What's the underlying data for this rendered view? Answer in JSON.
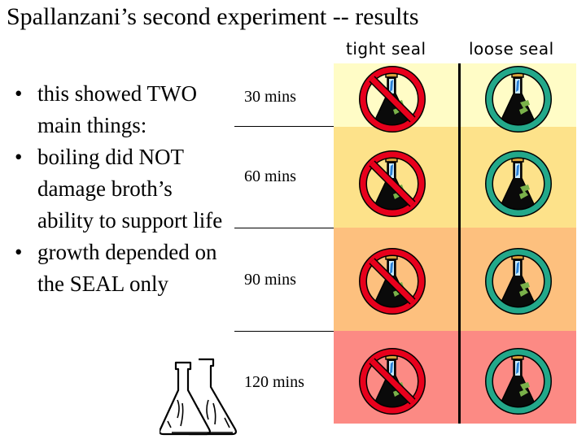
{
  "title": "Spallanzani’s second experiment -- results",
  "columns": {
    "tight": "tight seal",
    "loose": "loose seal"
  },
  "bullets": [
    "this showed TWO main things:",
    "boiling did NOT damage broth’s ability to support life",
    "growth depended on the SEAL only"
  ],
  "bullet_char": "•",
  "rows": [
    {
      "time": "30 mins",
      "color": "#fffcc6"
    },
    {
      "time": "60 mins",
      "color": "#fde28a"
    },
    {
      "time": "90 mins",
      "color": "#fdc07e"
    },
    {
      "time": "120 mins",
      "color": "#fc8a84"
    }
  ],
  "colors": {
    "no_growth": "#e8001c",
    "growth": "#23a88a",
    "broth": "#7ab14a",
    "flask_blue": "#2a7fd4"
  },
  "icons": {
    "tight": "no-growth-icon",
    "loose": "growth-icon",
    "decor": "lab-flasks-icon"
  }
}
